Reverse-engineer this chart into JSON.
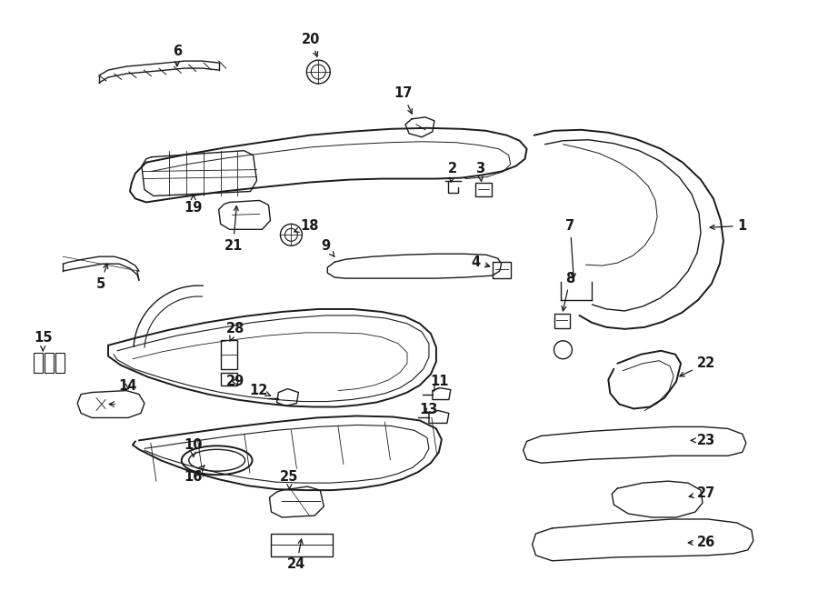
{
  "bg_color": "#ffffff",
  "line_color": "#1a1a1a",
  "fig_w": 9.0,
  "fig_h": 6.61,
  "label_fontsize": 10.5
}
